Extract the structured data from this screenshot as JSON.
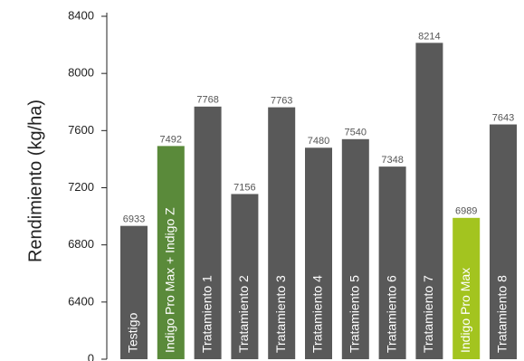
{
  "chart_data": {
    "type": "bar",
    "y_label": "Rendimiento (kg/ha)",
    "categories": [
      "Testigo",
      "Indigo Pro Max + Indigo Z",
      "Tratamiento 1",
      "Tratamiento 2",
      "Tratamiento 3",
      "Tratamiento 4",
      "Tratamiento 5",
      "Tratamiento 6",
      "Tratamiento 7",
      "Indigo Pro Max",
      "Tratamiento 8"
    ],
    "values": [
      6933,
      7492,
      7768,
      7156,
      7763,
      7480,
      7540,
      7348,
      8214,
      6989,
      7643
    ],
    "colors": [
      "#595959",
      "#5a8a3a",
      "#595959",
      "#595959",
      "#595959",
      "#595959",
      "#595959",
      "#595959",
      "#595959",
      "#a3c41f",
      "#595959"
    ],
    "ylim": [
      0,
      8400
    ],
    "yticks": [
      0,
      6400,
      6800,
      7200,
      7600,
      8000,
      8400
    ],
    "axis_break": true
  }
}
